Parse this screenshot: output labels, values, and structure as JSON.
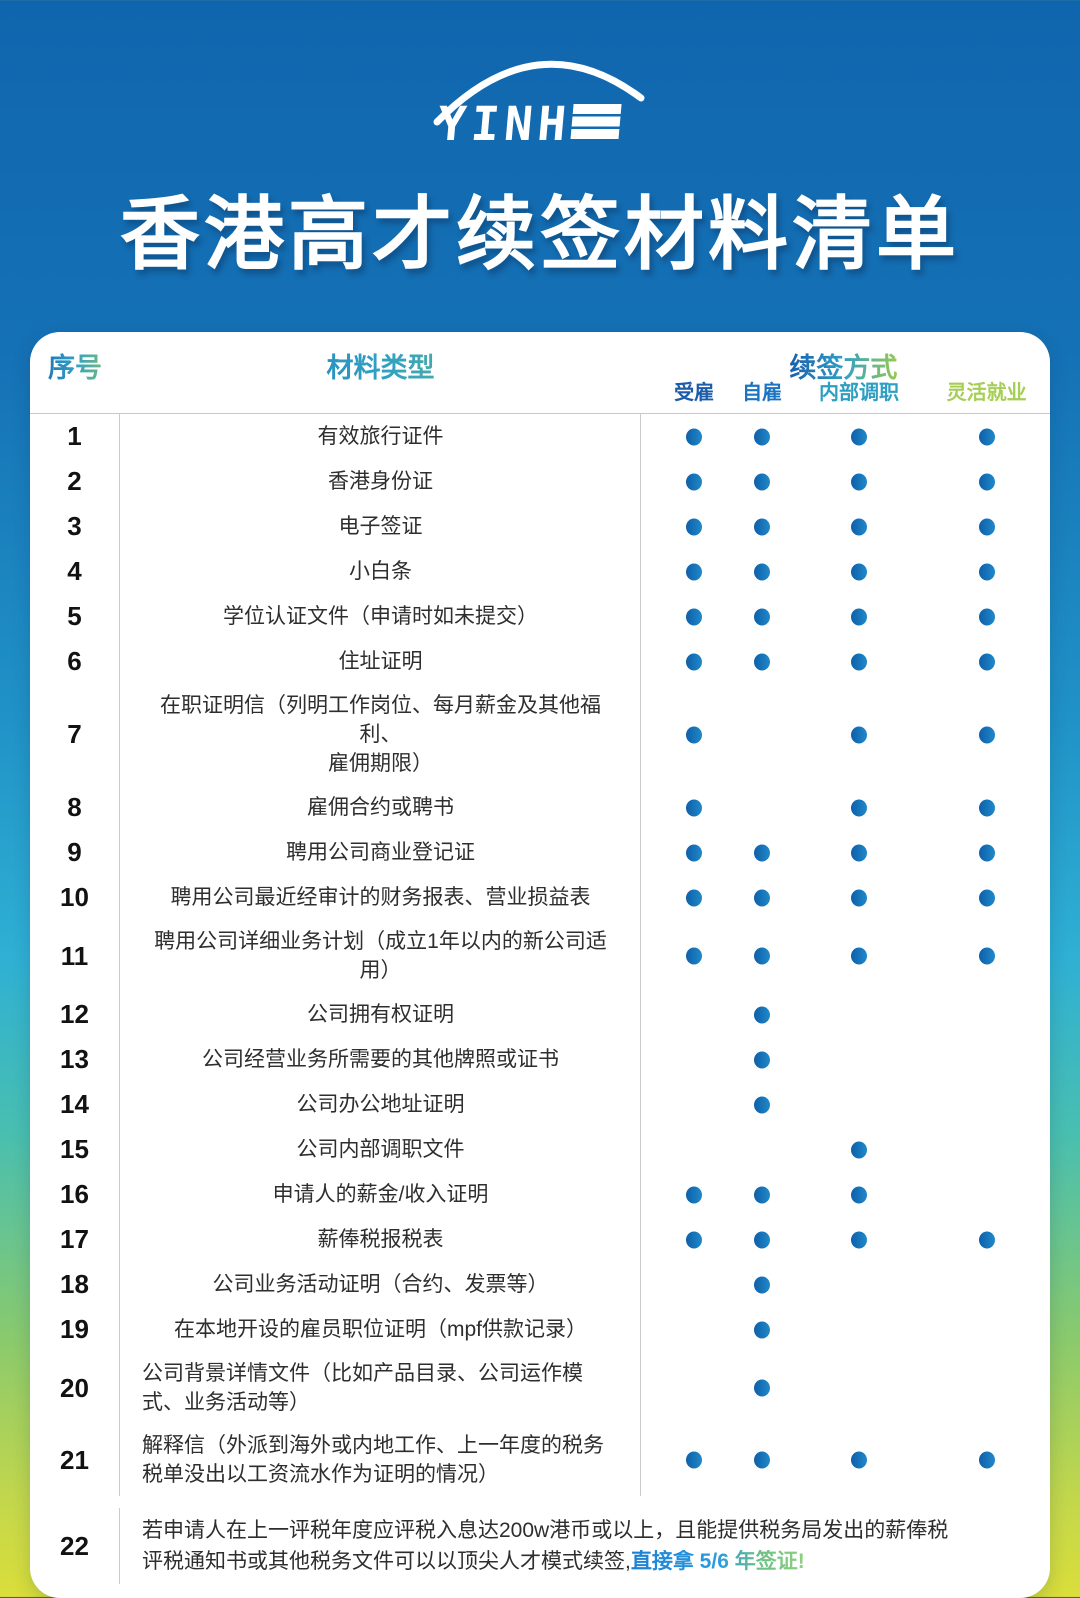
{
  "logo": {
    "text": "YINHE"
  },
  "title": "香港高才续签材料清单",
  "colors": {
    "dot": "#0e5fa9",
    "dot_light": "#2089ca",
    "header_gradient": [
      "#1a5fae",
      "#2fa0c4",
      "#97ca52"
    ],
    "highlight_gradient": [
      "#1d7fd2",
      "#2b9ce0",
      "#6cc184",
      "#8ed07f"
    ],
    "background_stops": [
      "#1066ae 0%",
      "#1571b5 22%",
      "#2092c7 45%",
      "#2fb0d4 60%",
      "#49bfb0 71%",
      "#8bca6c 84%",
      "#c3d74b 94%",
      "#dade3a 100%"
    ]
  },
  "table": {
    "headers": {
      "no": "序号",
      "material": "材料类型",
      "renewal": "续签方式"
    },
    "methods": [
      {
        "key": "employed",
        "label": "受雇",
        "color": "#1d5ca8"
      },
      {
        "key": "self-employed",
        "label": "自雇",
        "color": "#1b74c2"
      },
      {
        "key": "internal-transfer",
        "label": "内部调职",
        "color": "#2d9fc2"
      },
      {
        "key": "flexible-employment",
        "label": "灵活就业",
        "color": "#a6ce55"
      }
    ],
    "rows": [
      {
        "no": "1",
        "material": "有效旅行证件",
        "dots": [
          true,
          true,
          true,
          true
        ]
      },
      {
        "no": "2",
        "material": "香港身份证",
        "dots": [
          true,
          true,
          true,
          true
        ]
      },
      {
        "no": "3",
        "material": "电子签证",
        "dots": [
          true,
          true,
          true,
          true
        ]
      },
      {
        "no": "4",
        "material": "小白条",
        "dots": [
          true,
          true,
          true,
          true
        ]
      },
      {
        "no": "5",
        "material": "学位认证文件（申请时如未提交）",
        "dots": [
          true,
          true,
          true,
          true
        ]
      },
      {
        "no": "6",
        "material": "住址证明",
        "dots": [
          true,
          true,
          true,
          true
        ]
      },
      {
        "no": "7",
        "material": "在职证明信（列明工作岗位、每月薪金及其他福利、\n雇佣期限）",
        "dots": [
          true,
          false,
          true,
          true
        ]
      },
      {
        "no": "8",
        "material": "雇佣合约或聘书",
        "dots": [
          true,
          false,
          true,
          true
        ]
      },
      {
        "no": "9",
        "material": "聘用公司商业登记证",
        "dots": [
          true,
          true,
          true,
          true
        ]
      },
      {
        "no": "10",
        "material": "聘用公司最近经审计的财务报表、营业损益表",
        "dots": [
          true,
          true,
          true,
          true
        ]
      },
      {
        "no": "11",
        "material": "聘用公司详细业务计划（成立1年以内的新公司适用）",
        "dots": [
          true,
          true,
          true,
          true
        ]
      },
      {
        "no": "12",
        "material": "公司拥有权证明",
        "dots": [
          false,
          true,
          false,
          false
        ]
      },
      {
        "no": "13",
        "material": "公司经营业务所需要的其他牌照或证书",
        "dots": [
          false,
          true,
          false,
          false
        ]
      },
      {
        "no": "14",
        "material": "公司办公地址证明",
        "dots": [
          false,
          true,
          false,
          false
        ]
      },
      {
        "no": "15",
        "material": "公司内部调职文件",
        "dots": [
          false,
          false,
          true,
          false
        ]
      },
      {
        "no": "16",
        "material": "申请人的薪金/收入证明",
        "dots": [
          true,
          true,
          true,
          false
        ]
      },
      {
        "no": "17",
        "material": "薪俸税报税表",
        "dots": [
          true,
          true,
          true,
          true
        ]
      },
      {
        "no": "18",
        "material": "公司业务活动证明（合约、发票等）",
        "dots": [
          false,
          true,
          false,
          false
        ]
      },
      {
        "no": "19",
        "material": "在本地开设的雇员职位证明（mpf供款记录）",
        "dots": [
          false,
          true,
          false,
          false
        ]
      },
      {
        "no": "20",
        "material": "公司背景详情文件（比如产品目录、公司运作模\n式、业务活动等）",
        "dots": [
          false,
          true,
          false,
          false
        ],
        "align": "left"
      },
      {
        "no": "21",
        "material": "解释信（外派到海外或内地工作、上一年度的税务\n税单没出以工资流水作为证明的情况）",
        "dots": [
          true,
          true,
          true,
          true
        ],
        "align": "left"
      },
      {
        "no": "22",
        "material": "若申请人在上一评税年度应评税入息达200w港币或以上，且能提供税务局发出的薪俸税\n评税通知书或其他税务文件可以以顶尖人才模式续签,",
        "highlight": "直接拿 5/6 年签证!",
        "dots": null,
        "align": "left",
        "full_width": true
      }
    ]
  }
}
